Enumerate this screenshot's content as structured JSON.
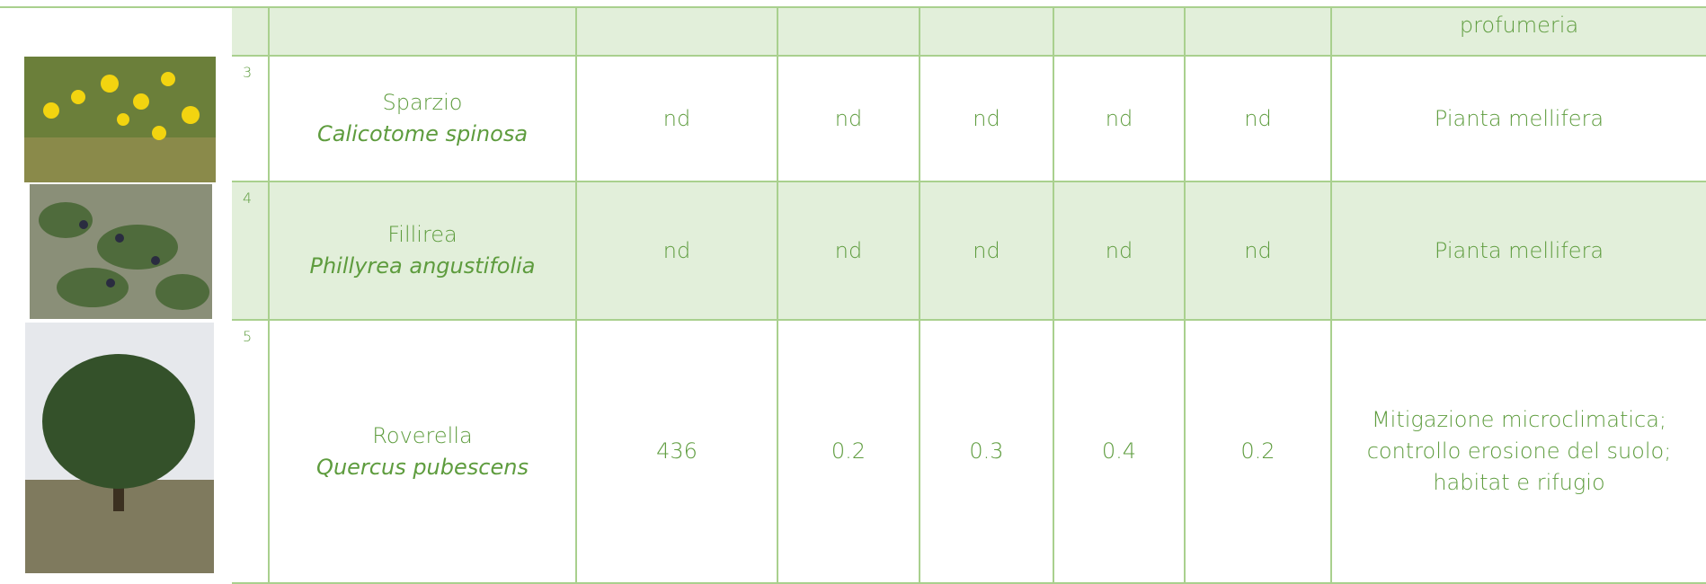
{
  "table": {
    "rows": [
      {
        "notes": [
          "profumeria"
        ]
      },
      {
        "number": "3",
        "common_name": "Sparzio",
        "scientific_name": "Calicotome spinosa",
        "values": [
          "nd",
          "nd",
          "nd",
          "nd",
          "nd"
        ],
        "notes": [
          "Pianta mellifera"
        ]
      },
      {
        "number": "4",
        "common_name": "Fillirea",
        "scientific_name": "Phillyrea angustifolia",
        "values": [
          "nd",
          "nd",
          "nd",
          "nd",
          "nd"
        ],
        "notes": [
          "Pianta mellifera"
        ]
      },
      {
        "number": "5",
        "common_name": "Roverella",
        "scientific_name": "Quercus pubescens",
        "values": [
          436,
          0.2,
          0.3,
          0.4,
          0.2
        ],
        "notes": [
          "Mitigazione microclimatica;",
          "controllo erosione del suolo;",
          "habitat e rifugio"
        ]
      }
    ]
  }
}
